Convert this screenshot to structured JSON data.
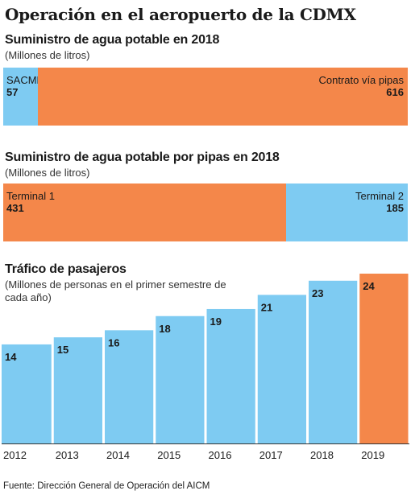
{
  "title": "Operación en el aeropuerto de la CDMX",
  "colors": {
    "blue": "#7ecbf2",
    "orange": "#f4874a"
  },
  "source": "Fuente: Dirección General de Operación del AICM",
  "chart_data": [
    {
      "type": "bar",
      "orientation": "horizontal-stacked",
      "title": "Suministro de agua potable en 2018",
      "subtitle": "(Millones de litros)",
      "segments": [
        {
          "label": "SACMEX",
          "value": 57,
          "color": "#7ecbf2"
        },
        {
          "label": "Contrato vía pipas",
          "value": 616,
          "color": "#f4874a"
        }
      ]
    },
    {
      "type": "bar",
      "orientation": "horizontal-stacked",
      "title": "Suministro de agua potable por pipas en 2018",
      "subtitle": "(Millones de litros)",
      "segments": [
        {
          "label": "Terminal 1",
          "value": 431,
          "color": "#f4874a"
        },
        {
          "label": "Terminal 2",
          "value": 185,
          "color": "#7ecbf2"
        }
      ]
    },
    {
      "type": "bar",
      "title": "Tráfico de pasajeros",
      "subtitle": "(Millones de personas en el primer semestre de cada año)",
      "categories": [
        "2012",
        "2013",
        "2014",
        "2015",
        "2016",
        "2017",
        "2018",
        "2019"
      ],
      "values": [
        14,
        15,
        16,
        18,
        19,
        21,
        23,
        24
      ],
      "colors": [
        "#7ecbf2",
        "#7ecbf2",
        "#7ecbf2",
        "#7ecbf2",
        "#7ecbf2",
        "#7ecbf2",
        "#7ecbf2",
        "#f4874a"
      ],
      "ylim": [
        0,
        24
      ]
    }
  ]
}
